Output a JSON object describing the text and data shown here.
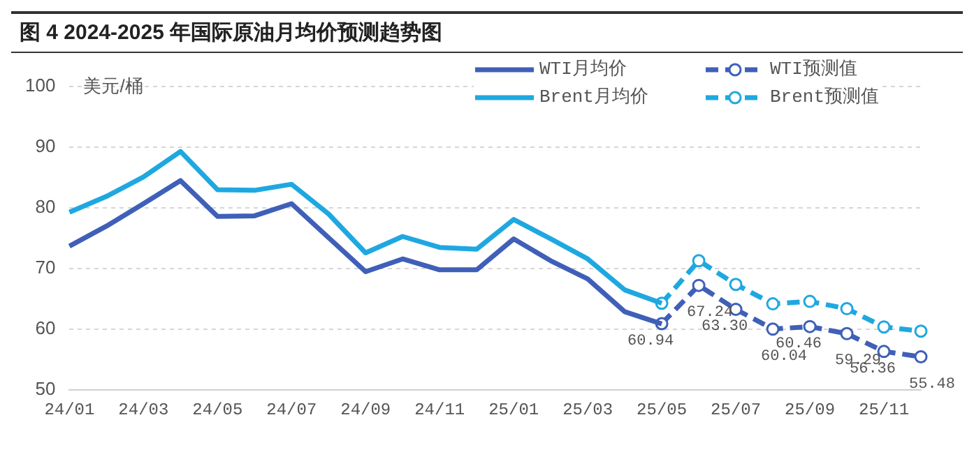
{
  "chart_data": {
    "type": "line",
    "title": "图 4 2024-2025 年国际原油月均价预测趋势图",
    "ylabel": "美元/桶",
    "categories": [
      "24/01",
      null,
      "24/03",
      null,
      "24/05",
      null,
      "24/07",
      null,
      "24/09",
      null,
      "24/11",
      null,
      "25/01",
      null,
      "25/03",
      null,
      "25/05",
      null,
      "25/07",
      null,
      "25/09",
      null,
      "25/11",
      null
    ],
    "series": [
      {
        "name": "WTI月均价",
        "color": "#3f5fb8",
        "marker": "none",
        "line_style": "solid",
        "values": [
          73.7,
          77.0,
          80.7,
          84.5,
          78.6,
          78.7,
          80.7,
          75.1,
          69.5,
          71.6,
          69.8,
          69.8,
          74.9,
          71.3,
          68.3,
          62.9,
          60.9,
          null,
          null,
          null,
          null,
          null,
          null,
          null
        ]
      },
      {
        "name": "Brent月均价",
        "color": "#1fa8e0",
        "marker": "none",
        "line_style": "solid",
        "values": [
          79.3,
          81.9,
          85.1,
          89.3,
          83.0,
          82.9,
          83.9,
          79.0,
          72.6,
          75.3,
          73.5,
          73.2,
          78.1,
          74.9,
          71.6,
          66.5,
          64.3,
          null,
          null,
          null,
          null,
          null,
          null,
          null
        ]
      },
      {
        "name": "WTI预测值",
        "color": "#3f5fb8",
        "marker": "circle",
        "line_style": "dashed",
        "values": [
          null,
          null,
          null,
          null,
          null,
          null,
          null,
          null,
          null,
          null,
          null,
          null,
          null,
          null,
          null,
          null,
          60.94,
          67.24,
          63.3,
          60.04,
          60.46,
          59.29,
          56.36,
          55.48
        ],
        "value_labels": [
          null,
          null,
          null,
          null,
          null,
          null,
          null,
          null,
          null,
          null,
          null,
          null,
          null,
          null,
          null,
          null,
          "60.94",
          "67.24",
          "63.30",
          "60.04",
          "60.46",
          "59.29",
          "56.36",
          "55.48"
        ]
      },
      {
        "name": "Brent预测值",
        "color": "#1fa8e0",
        "marker": "circle",
        "line_style": "dashed",
        "values": [
          null,
          null,
          null,
          null,
          null,
          null,
          null,
          null,
          null,
          null,
          null,
          null,
          null,
          null,
          null,
          null,
          64.3,
          71.3,
          67.4,
          64.2,
          64.6,
          63.4,
          60.4,
          59.7
        ]
      }
    ],
    "ylim": [
      50,
      100
    ],
    "yticks": [
      50,
      60,
      70,
      80,
      90,
      100
    ],
    "grid": "y",
    "legend": "top right"
  }
}
